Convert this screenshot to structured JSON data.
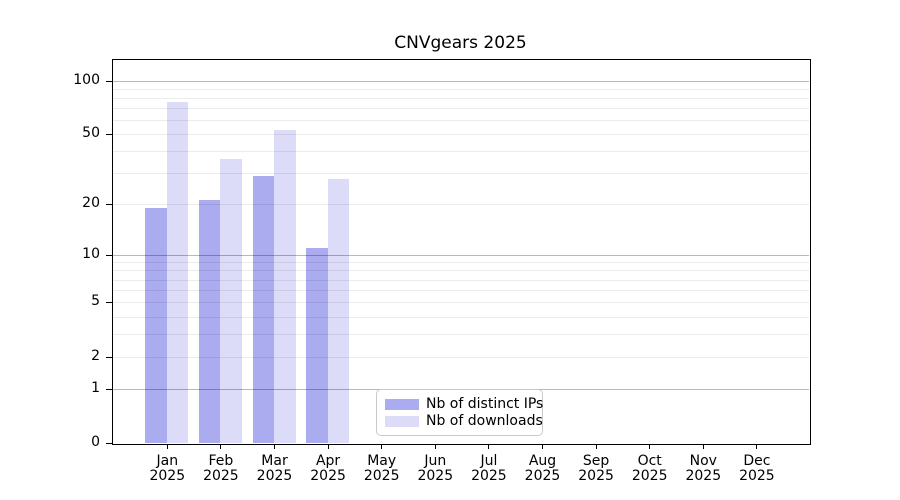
{
  "chart_data": {
    "type": "bar",
    "title": "CNVgears 2025",
    "categories": [
      "Jan",
      "Feb",
      "Mar",
      "Apr",
      "May",
      "Jun",
      "Jul",
      "Aug",
      "Sep",
      "Oct",
      "Nov",
      "Dec"
    ],
    "category_sublabel": "2025",
    "series": [
      {
        "name": "Nb of distinct IPs",
        "color": "#ababf0",
        "values": [
          19,
          21,
          29,
          11,
          0,
          0,
          0,
          0,
          0,
          0,
          0,
          0
        ]
      },
      {
        "name": "Nb of downloads",
        "color": "#dcdcf8",
        "values": [
          76,
          36,
          53,
          28,
          0,
          0,
          0,
          0,
          0,
          0,
          0,
          0
        ]
      }
    ],
    "yaxis": {
      "scale": "log1p",
      "ylim": [
        0,
        132
      ],
      "ticks": [
        0,
        1,
        2,
        5,
        10,
        20,
        50,
        100
      ],
      "minor_gridlines": [
        2,
        3,
        4,
        5,
        6,
        7,
        8,
        9,
        20,
        30,
        40,
        50,
        60,
        70,
        80,
        90
      ],
      "major_gridlines": [
        1,
        10,
        100
      ]
    },
    "xlabel": "",
    "ylabel": "",
    "grid": "on",
    "legend": {
      "position": "lower center"
    }
  }
}
